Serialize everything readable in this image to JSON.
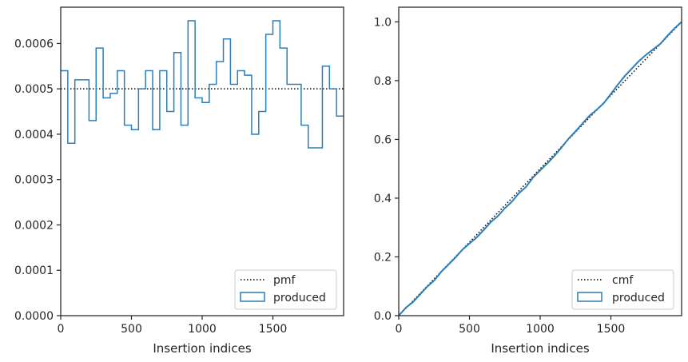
{
  "colors": {
    "produced": "#2c7fb8",
    "reference": "#000000",
    "axis": "#262626",
    "legend_border": "#cccccc"
  },
  "chart_data": [
    {
      "type": "histogram-step",
      "xlabel": "Insertion indices",
      "ylabel": "",
      "xlim": [
        0,
        2000
      ],
      "ylim": [
        0,
        0.00068
      ],
      "xticks": [
        0,
        500,
        1000,
        1500
      ],
      "xtick_labels": [
        "0",
        "500",
        "1000",
        "1500"
      ],
      "yticks": [
        0,
        0.0001,
        0.0002,
        0.0003,
        0.0004,
        0.0005,
        0.0006
      ],
      "ytick_labels": [
        "0.0000",
        "0.0001",
        "0.0002",
        "0.0003",
        "0.0004",
        "0.0005",
        "0.0006"
      ],
      "legend_position": "lower right",
      "legend": [
        "pmf",
        "produced"
      ],
      "reference": {
        "name": "pmf",
        "style": "dotted",
        "value": 0.0005
      },
      "series": [
        {
          "name": "produced",
          "bin_width": 50,
          "values": [
            0.00054,
            0.00038,
            0.00052,
            0.00052,
            0.00043,
            0.00059,
            0.00048,
            0.00049,
            0.00054,
            0.00042,
            0.00041,
            0.0005,
            0.00054,
            0.00041,
            0.00054,
            0.00045,
            0.00058,
            0.00042,
            0.00065,
            0.00048,
            0.00047,
            0.00051,
            0.00056,
            0.00061,
            0.00051,
            0.00054,
            0.00053,
            0.0004,
            0.00045,
            0.00062,
            0.00065,
            0.00059,
            0.00051,
            0.00051,
            0.00042,
            0.00037,
            0.00037,
            0.00055,
            0.0005,
            0.00044
          ]
        }
      ]
    },
    {
      "type": "line",
      "xlabel": "Insertion indices",
      "ylabel": "",
      "xlim": [
        0,
        2000
      ],
      "ylim": [
        0,
        1.05
      ],
      "xticks": [
        0,
        500,
        1000,
        1500
      ],
      "xtick_labels": [
        "0",
        "500",
        "1000",
        "1500"
      ],
      "yticks": [
        0,
        0.2,
        0.4,
        0.6,
        0.8,
        1.0
      ],
      "ytick_labels": [
        "0.0",
        "0.2",
        "0.4",
        "0.6",
        "0.8",
        "1.0"
      ],
      "legend_position": "lower right",
      "legend": [
        "cmf",
        "produced"
      ],
      "reference": {
        "name": "cmf",
        "style": "dotted",
        "x": [
          0,
          2000
        ],
        "y": [
          0,
          1.0
        ]
      },
      "series": [
        {
          "name": "produced",
          "x": [
            0,
            50,
            100,
            150,
            200,
            250,
            300,
            350,
            400,
            450,
            500,
            550,
            600,
            650,
            700,
            750,
            800,
            850,
            900,
            950,
            1000,
            1050,
            1100,
            1150,
            1200,
            1250,
            1300,
            1350,
            1400,
            1450,
            1500,
            1550,
            1600,
            1650,
            1700,
            1750,
            1800,
            1850,
            1900,
            1950,
            2000
          ],
          "y": [
            0,
            0.027,
            0.046,
            0.072,
            0.098,
            0.1195,
            0.149,
            0.173,
            0.1975,
            0.2245,
            0.2455,
            0.266,
            0.291,
            0.318,
            0.3385,
            0.3655,
            0.388,
            0.417,
            0.438,
            0.4705,
            0.4945,
            0.518,
            0.5435,
            0.5715,
            0.602,
            0.6275,
            0.6545,
            0.681,
            0.701,
            0.7235,
            0.7545,
            0.787,
            0.8165,
            0.842,
            0.8675,
            0.8885,
            0.907,
            0.9255,
            0.953,
            0.978,
            1.0
          ]
        }
      ]
    }
  ]
}
